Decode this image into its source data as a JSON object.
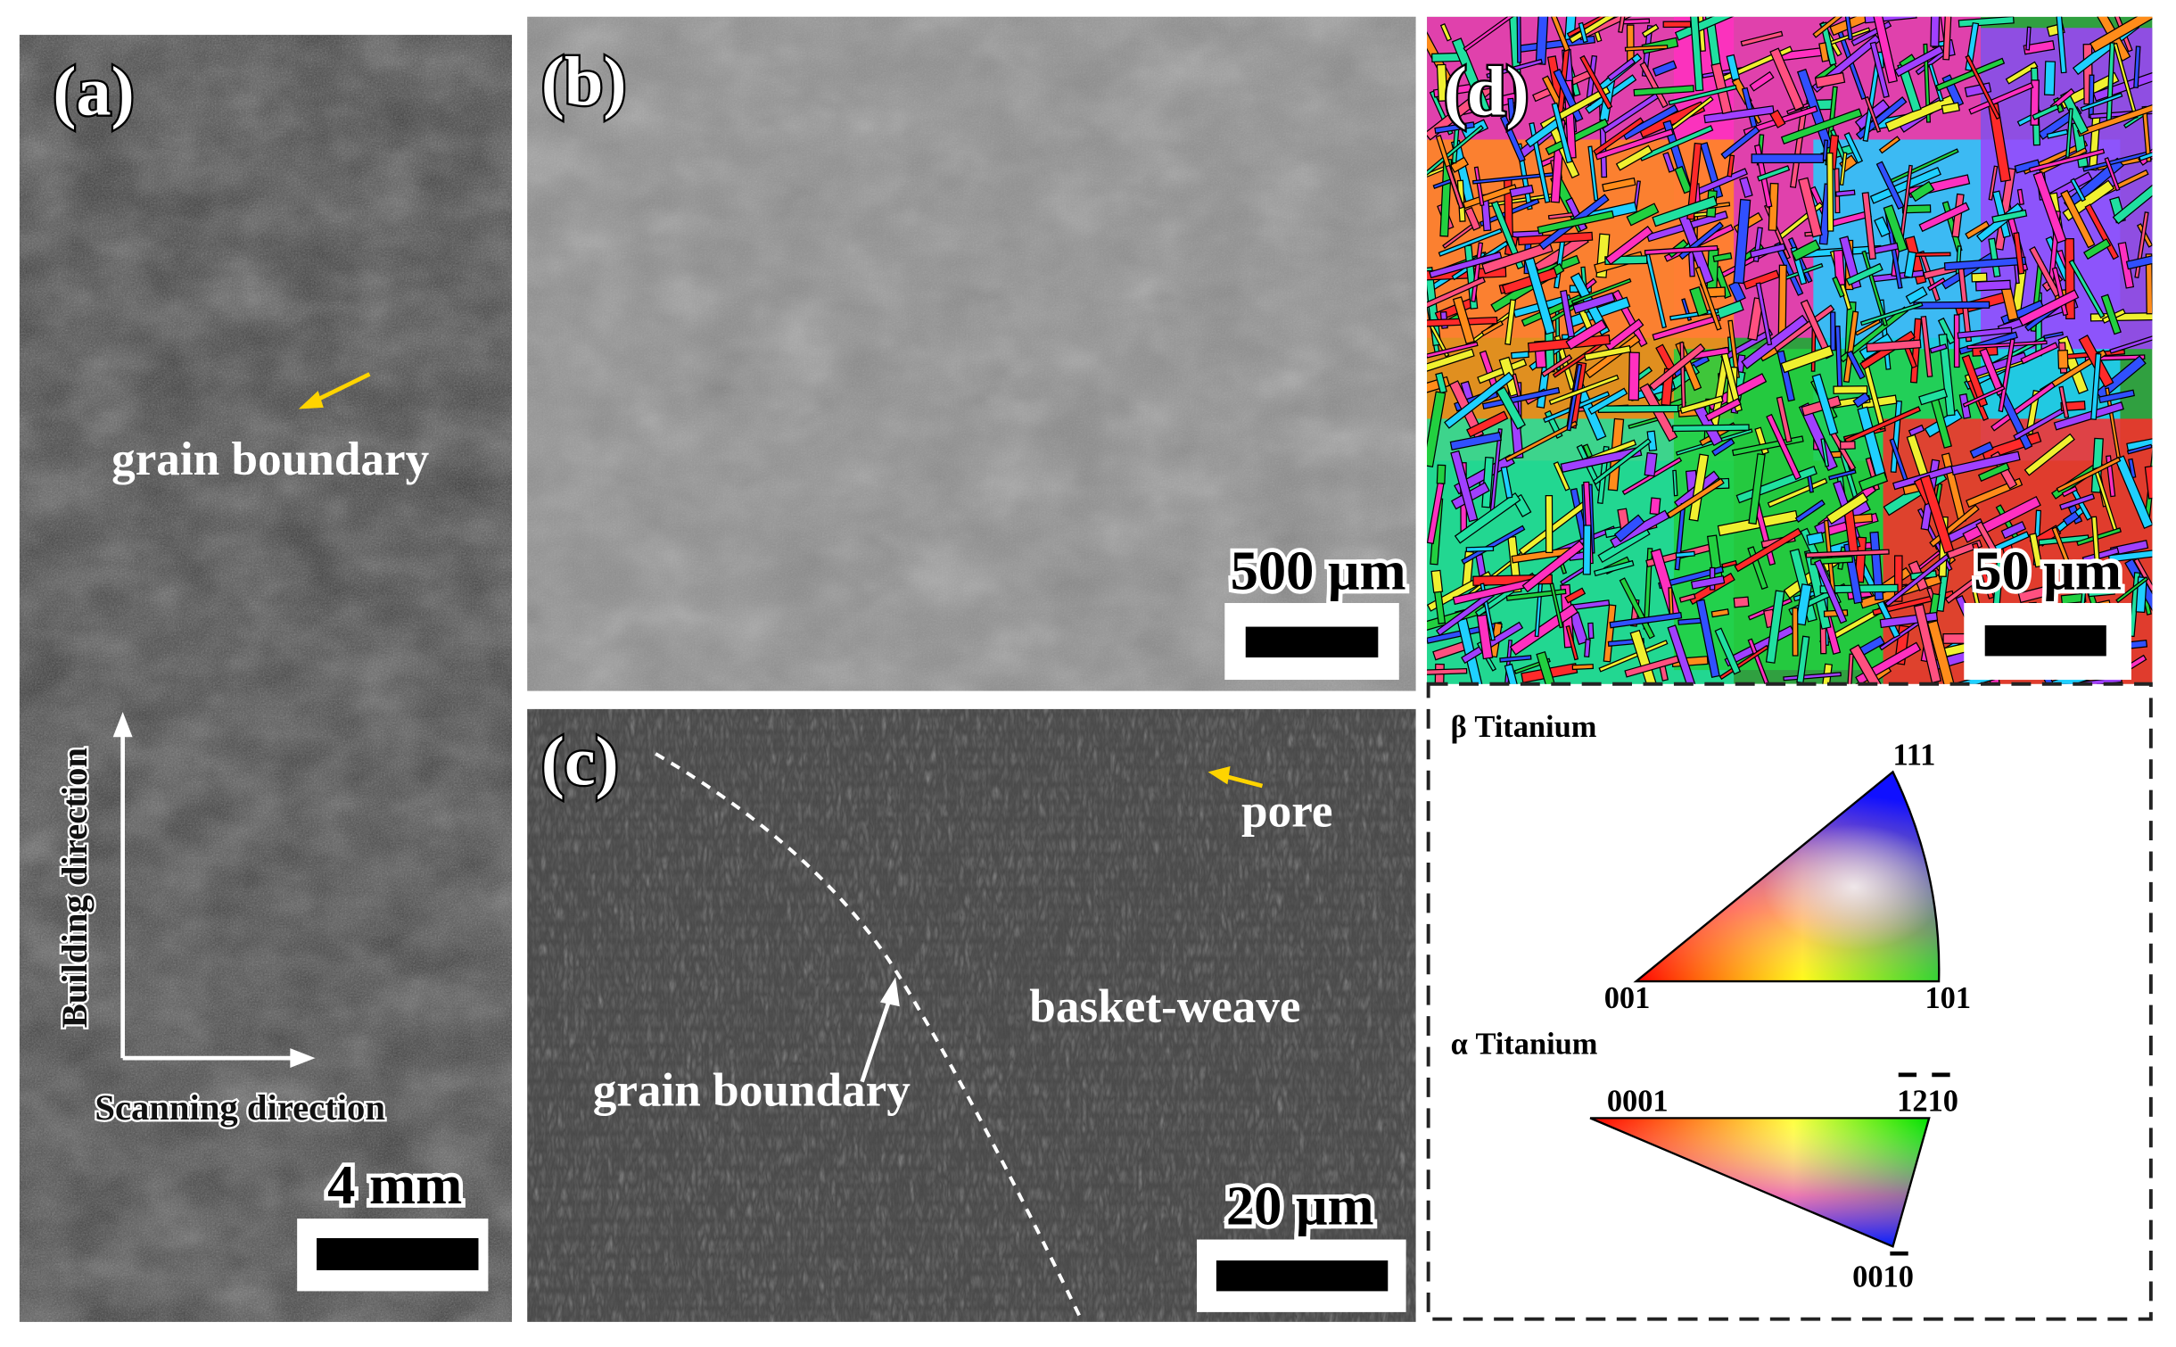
{
  "panels": {
    "a": {
      "label": "(a)",
      "annotation": "grain boundary",
      "building_direction": "Building direction",
      "scanning_direction": "Scanning direction",
      "scale_bar": "4 mm"
    },
    "b": {
      "label": "(b)",
      "scale_bar": "500 μm"
    },
    "c": {
      "label": "(c)",
      "pore": "pore",
      "basket_weave": "basket-weave",
      "grain_boundary": "grain boundary",
      "scale_bar": "20 μm"
    },
    "d": {
      "label": "(d)",
      "scale_bar": "50 μm",
      "legend": {
        "beta": {
          "title": "β Titanium",
          "corners": [
            "111",
            "001",
            "101"
          ]
        },
        "alpha": {
          "title": "α Titanium",
          "corners": [
            "0001",
            "1210",
            "0010"
          ]
        }
      }
    }
  }
}
